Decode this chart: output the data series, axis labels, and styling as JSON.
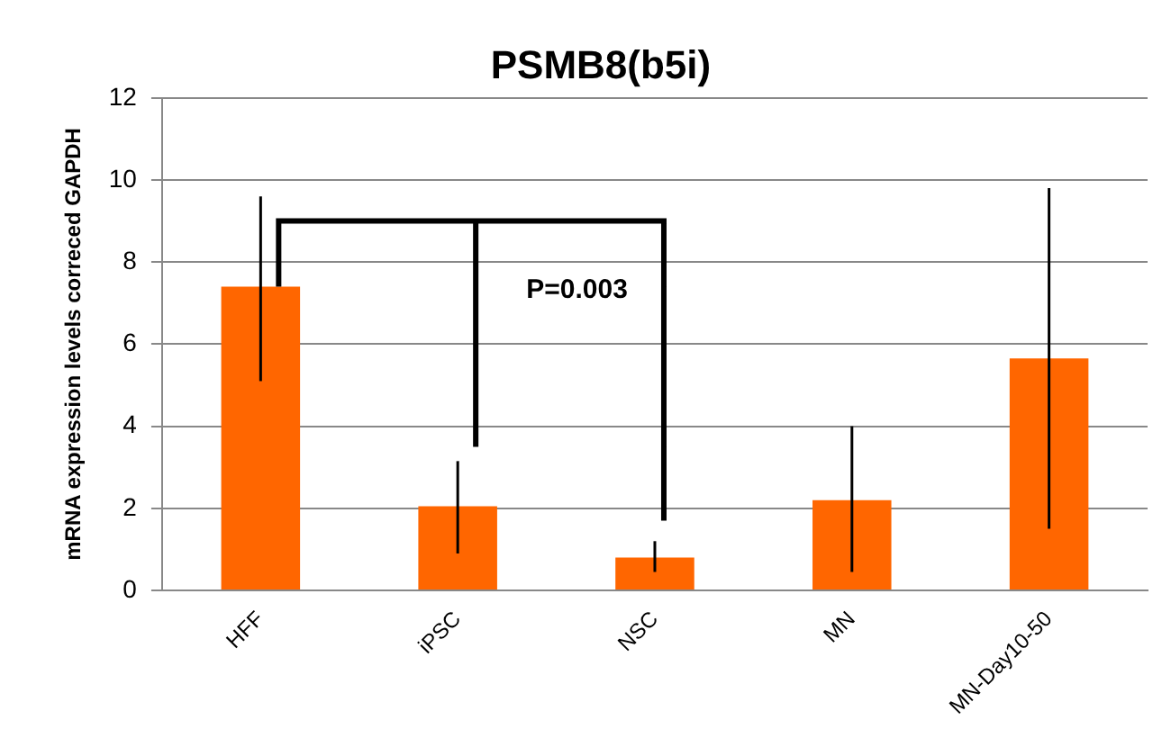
{
  "chart_data": {
    "type": "bar",
    "title": "PSMB8(b5i)",
    "ylabel": "mRNA expression levels correced GAPDH",
    "categories": [
      "HFF",
      "iPSC",
      "NSC",
      "MN",
      "MN-Day10-50"
    ],
    "values": [
      7.4,
      2.05,
      0.8,
      2.2,
      5.65
    ],
    "errors": [
      [
        5.1,
        9.6
      ],
      [
        0.9,
        3.15
      ],
      [
        0.45,
        1.2
      ],
      [
        0.45,
        4.0
      ],
      [
        1.5,
        9.8
      ]
    ],
    "color": "#ff6600",
    "ylim": [
      0,
      12
    ],
    "yticks": [
      0,
      2,
      4,
      6,
      8,
      10,
      12
    ],
    "grid": "y",
    "annotations": [
      "P=0.003"
    ]
  }
}
